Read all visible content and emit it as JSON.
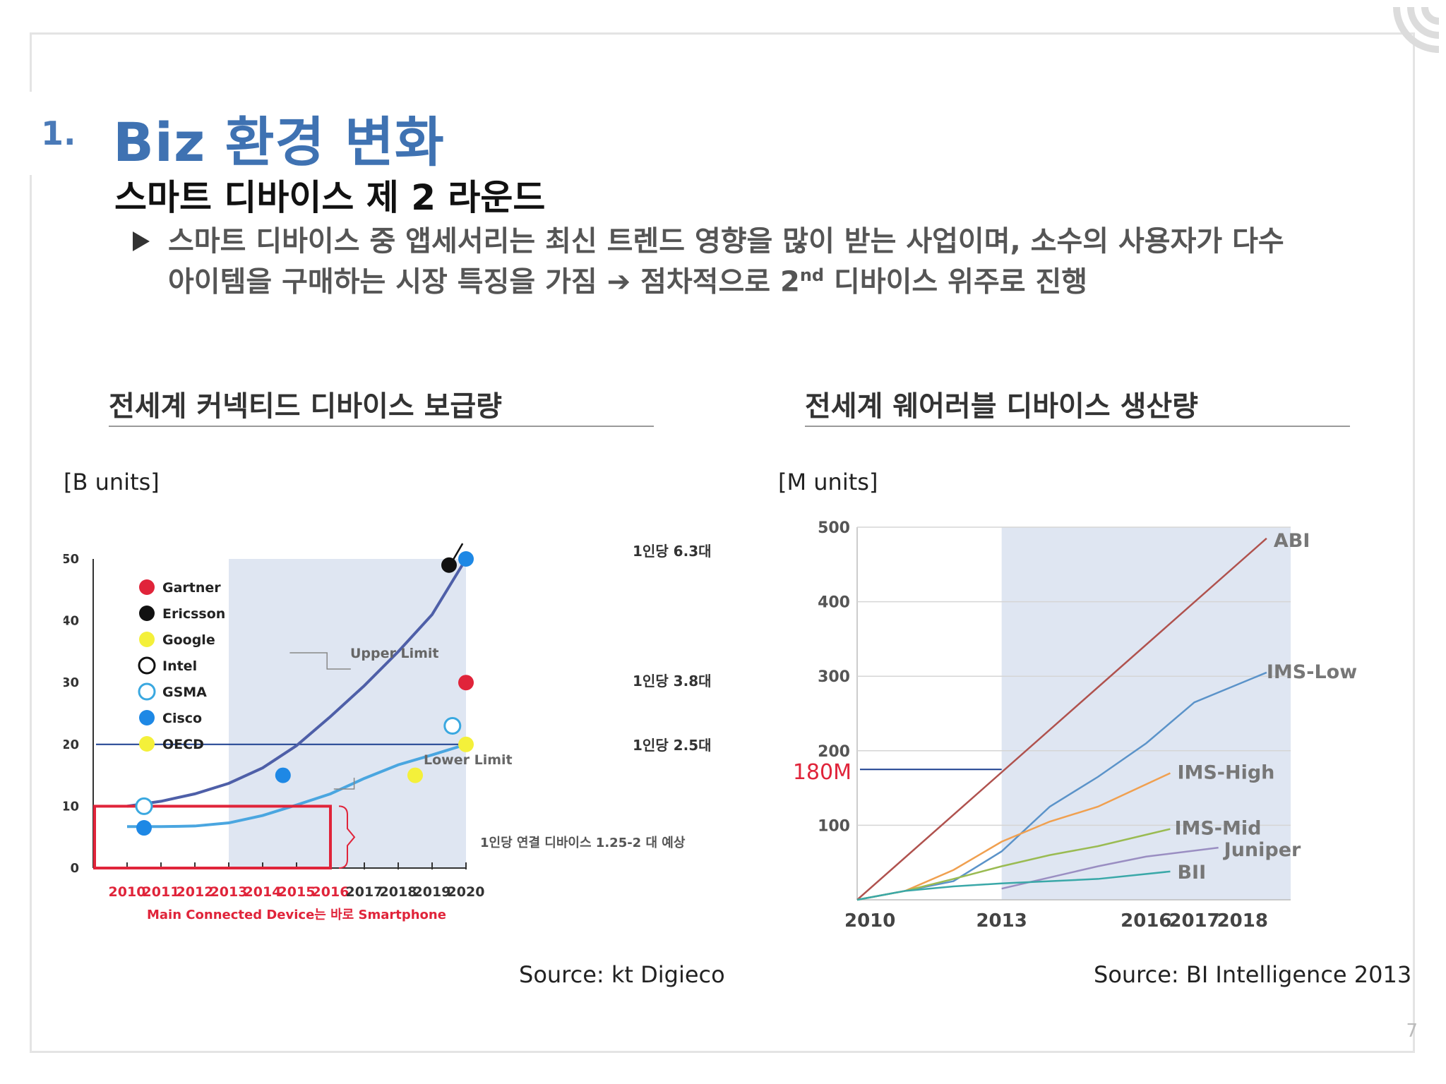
{
  "header": {
    "section_number": "1.",
    "section_title": "Biz 환경 변화",
    "subtitle": "스마트 디바이스 제 2 라운드"
  },
  "bullet": {
    "line1": "스마트 디바이스 중 앱세서리는 최신 트렌드 영향을 많이 받는 사업이며, 소수의 사용자가 다수",
    "line2_pre": "아이템을 구매하는 시장 특징을 가짐 ➔ 점차적으로 2",
    "line2_sup": "nd",
    "line2_post": " 디바이스 위주로 진행"
  },
  "colors": {
    "title_blue": "#3f72b2",
    "highlight_band": "#dfe6f2",
    "red_box": "#e0243a",
    "annotation_red": "#e0243a"
  },
  "chart_data": [
    {
      "type": "line",
      "title": "전세계 커넥티드 디바이스 보급량",
      "ylabel": "[B units]",
      "ylim": [
        0,
        50
      ],
      "yticks": [
        0,
        10,
        20,
        30,
        40,
        50
      ],
      "x": [
        "2010",
        "2011",
        "2012",
        "2013",
        "2014",
        "2015",
        "2016",
        "2017",
        "2018",
        "2019",
        "2020"
      ],
      "x_label_colors": {
        "2010": "#e0243a",
        "2011": "#e0243a",
        "2012": "#e0243a",
        "2013": "#e0243a",
        "2014": "#e0243a",
        "2015": "#e0243a",
        "2016": "#e0243a"
      },
      "highlight_range": [
        "2013",
        "2020"
      ],
      "series": [
        {
          "name": "Upper Limit",
          "color": "#4e5fa8",
          "x": [
            2010,
            2011,
            2012,
            2013,
            2014,
            2015,
            2016,
            2017,
            2018,
            2019,
            2020
          ],
          "values": [
            10,
            10.8,
            12,
            13.7,
            16.2,
            19.8,
            24.5,
            29.5,
            35,
            41,
            50
          ]
        },
        {
          "name": "Lower Limit",
          "color": "#4aa6e0",
          "x": [
            2010,
            2011,
            2012,
            2013,
            2014,
            2015,
            2016,
            2017,
            2018,
            2019,
            2020
          ],
          "values": [
            6.7,
            6.7,
            6.8,
            7.3,
            8.5,
            10.2,
            12,
            14.5,
            16.7,
            18.3,
            20
          ]
        }
      ],
      "legend": [
        {
          "name": "Gartner",
          "color": "#e0243a",
          "style": "filled"
        },
        {
          "name": "Ericsson",
          "color": "#111111",
          "style": "filled"
        },
        {
          "name": "Google",
          "color": "#f4f03a",
          "style": "filled"
        },
        {
          "name": "Intel",
          "color": "#111111",
          "style": "hollow"
        },
        {
          "name": "GSMA",
          "color": "#3aa8e0",
          "style": "hollow"
        },
        {
          "name": "Cisco",
          "color": "#1e88e5",
          "style": "filled"
        },
        {
          "name": "OECD",
          "color": "#f4f03a",
          "style": "filled"
        }
      ],
      "points": [
        {
          "source": "GSMA",
          "x": 2010.5,
          "y": 10
        },
        {
          "source": "Cisco",
          "x": 2010.5,
          "y": 6.5
        },
        {
          "source": "Cisco",
          "x": 2014.6,
          "y": 15
        },
        {
          "source": "Google",
          "x": 2018.5,
          "y": 15
        },
        {
          "source": "GSMA",
          "x": 2019.6,
          "y": 23
        },
        {
          "source": "Ericsson",
          "x": 2019.5,
          "y": 49
        },
        {
          "source": "Cisco",
          "x": 2020,
          "y": 50
        },
        {
          "source": "Gartner",
          "x": 2020,
          "y": 30
        },
        {
          "source": "OECD",
          "x": 2020,
          "y": 20
        }
      ],
      "reference_line": {
        "y": 20,
        "color": "#1b3f8f"
      },
      "annotations": {
        "upper_limit": "Upper Limit",
        "lower_limit": "Lower Limit",
        "per_capita_63": "1인당 6.3대",
        "per_capita_38": "1인당 3.8대",
        "per_capita_25": "1인당 2.5대",
        "box_note": "1인당 연결 디바이스 1.25-2 대 예상",
        "main_device": "Main Connected Device는 바로 Smartphone"
      }
    },
    {
      "type": "line",
      "title": "전세계 웨어러블 디바이스 생산량",
      "ylabel": "[M units]",
      "ylim": [
        0,
        500
      ],
      "yticks": [
        100,
        200,
        300,
        400,
        500
      ],
      "x_ticks": [
        "2010",
        "2013",
        "2016",
        "2017",
        "2018"
      ],
      "xlim": [
        2010,
        2019
      ],
      "highlight_range": [
        2013,
        2019
      ],
      "reference": {
        "label": "180M",
        "y": 175
      },
      "series": [
        {
          "name": "ABI",
          "color": "#b0524e",
          "x": [
            2010,
            2018.5
          ],
          "values": [
            0,
            485
          ]
        },
        {
          "name": "IMS-Low",
          "color": "#5b93c9",
          "x": [
            2010,
            2011,
            2012,
            2013,
            2014,
            2015,
            2016,
            2017,
            2018.5
          ],
          "values": [
            0,
            12,
            25,
            65,
            125,
            165,
            210,
            265,
            305
          ]
        },
        {
          "name": "IMS-High",
          "color": "#f0a050",
          "x": [
            2010,
            2011,
            2012,
            2013,
            2014,
            2015,
            2016.5
          ],
          "values": [
            0,
            12,
            40,
            78,
            105,
            125,
            170
          ]
        },
        {
          "name": "IMS-Mid",
          "color": "#9abb52",
          "x": [
            2010,
            2011,
            2012,
            2013,
            2014,
            2015,
            2016.5
          ],
          "values": [
            0,
            12,
            28,
            45,
            60,
            72,
            95
          ]
        },
        {
          "name": "Juniper",
          "color": "#9a8ec2",
          "x": [
            2013,
            2014,
            2015,
            2016,
            2017.5
          ],
          "values": [
            15,
            30,
            45,
            58,
            70
          ]
        },
        {
          "name": "BII",
          "color": "#3aa8a8",
          "x": [
            2010,
            2011,
            2012,
            2013,
            2014,
            2015,
            2016.5
          ],
          "values": [
            0,
            12,
            18,
            22,
            25,
            28,
            38
          ]
        }
      ]
    }
  ],
  "unit_labels": {
    "left": "[B units]",
    "right": "[M units]"
  },
  "sources": {
    "left": "Source: kt Digieco",
    "right": "Source: BI Intelligence 2013"
  },
  "page_number": "7"
}
